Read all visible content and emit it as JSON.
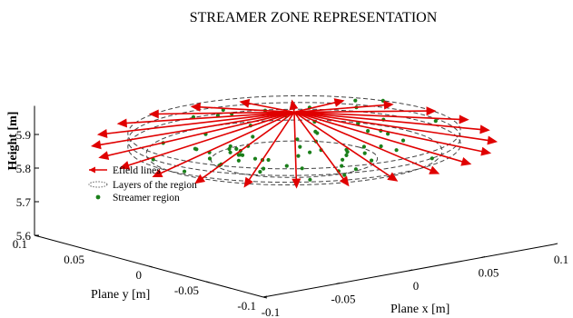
{
  "chart_data": {
    "type": "3d-line-scatter",
    "title": "STREAMER ZONE REPRESENTATION",
    "axes": {
      "x": {
        "label": "Plane x [m]",
        "range": [
          -0.1,
          0.1
        ],
        "ticks": [
          -0.1,
          -0.05,
          0,
          0.05,
          0.1
        ],
        "tick_labels": [
          "-0.1",
          "-0.05",
          "0",
          "0.05",
          "0.1"
        ]
      },
      "y": {
        "label": "Plane y [m]",
        "range": [
          -0.1,
          0.1
        ],
        "ticks": [
          -0.1,
          -0.05,
          0,
          0.05,
          0.1
        ],
        "tick_labels": [
          "-0.1",
          "-0.05",
          "0",
          "0.05",
          "0.1"
        ]
      },
      "z": {
        "label": "Height [m]",
        "range": [
          5.6,
          5.98
        ],
        "ticks": [
          5.6,
          5.7,
          5.8,
          5.9
        ],
        "tick_labels": [
          "5.6",
          "5.7",
          "5.8",
          "5.9"
        ]
      }
    },
    "legend": {
      "placement": "center-left",
      "entries": [
        {
          "label": "Efield lines",
          "style": "red-arrow"
        },
        {
          "label": "Layers of the region",
          "style": "dotted-ellipse"
        },
        {
          "label": "Streamer region",
          "style": "green-dot"
        }
      ]
    },
    "apex": {
      "x": 0.0,
      "y": 0.0,
      "z": 5.98
    },
    "layers": [
      {
        "z": 5.92,
        "radius": 0.09
      },
      {
        "z": 5.9,
        "radius": 0.09
      },
      {
        "z": 5.88,
        "radius": 0.09
      },
      {
        "z": 5.86,
        "radius": 0.08
      },
      {
        "z": 5.84,
        "radius": 0.045
      }
    ],
    "efield_line_count": 24,
    "colors": {
      "efield": "#e00000",
      "layer": "#444444",
      "streamer": "#1a7f1a"
    }
  }
}
